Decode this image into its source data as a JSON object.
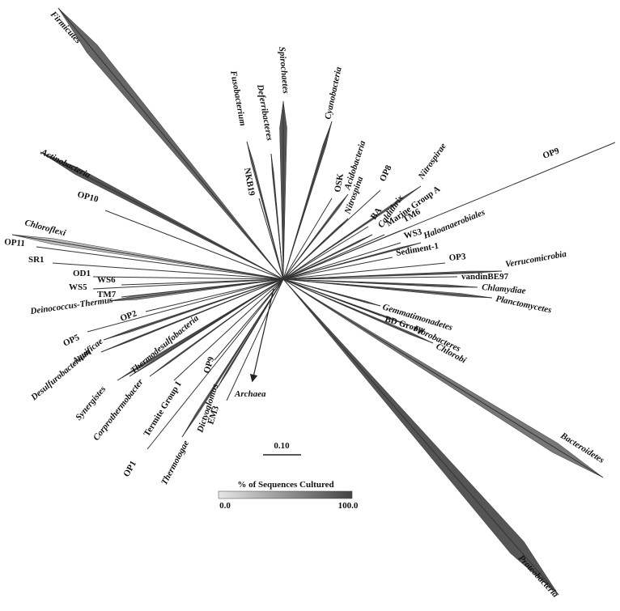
{
  "labels": [
    "Firmicutes",
    "Actinobacteria",
    "OP10",
    "Chloroflexi",
    "OP11",
    "SR1",
    "OD1",
    "WS6",
    "WS5",
    "TM7",
    "Deinococcus-Thermus",
    "OP2",
    "OP5",
    "Aquificae",
    "Desulfurobacterium",
    "Thermodesulfobacteria",
    "Synergistes",
    "Corprothermobacter",
    "Termite Group I",
    "OP9",
    "Dictyoglomus",
    "EM3",
    "OP1",
    "Thermotogae",
    "Fusobacterium",
    "Deferribacteres",
    "Spirochaetes",
    "Cyanobacteria",
    "Acidobacteria",
    "NKB19",
    "OSK",
    "Nitrospina",
    "OP8",
    "Nitrospirae",
    "BA",
    "Caldithrix",
    "Marine Group A",
    "TM6",
    "OP9",
    "Haloanaerobiales",
    "WS3",
    "Sediment-1",
    "OP3",
    "Verrucomicrobia",
    "vandinBE97",
    "Chlamydiae",
    "Planctomycetes",
    "Gemmatimonadetes",
    "BD Group",
    "Fibrobacteres",
    "Chlorobi",
    "Bacteroidetes",
    "Proteobacteria",
    "Archaea"
  ],
  "scale_bar": "0.10",
  "legend": {
    "title": "% of Sequences Cultured",
    "min": "0.0",
    "max": "100.0"
  }
}
